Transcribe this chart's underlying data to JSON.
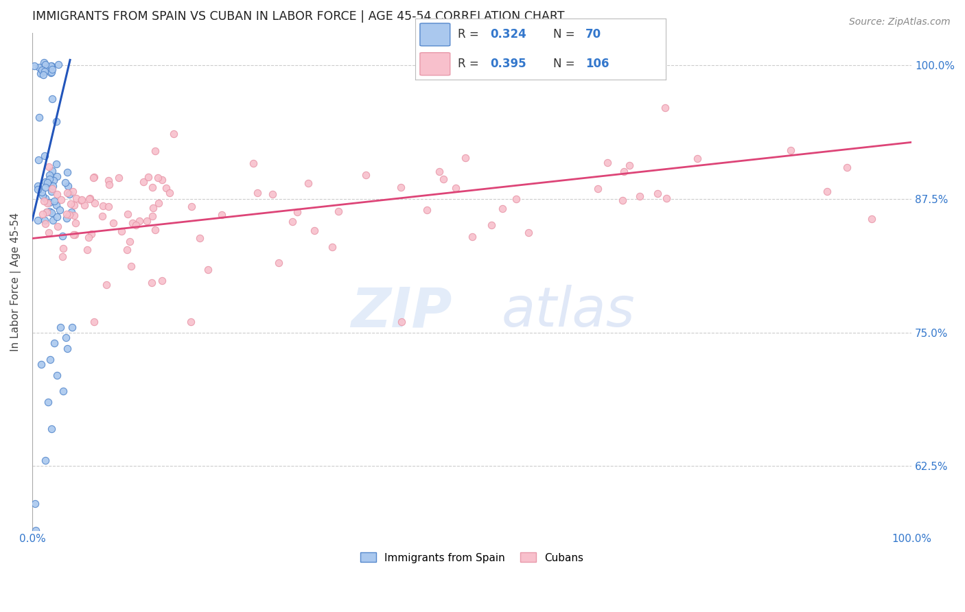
{
  "title": "IMMIGRANTS FROM SPAIN VS CUBAN IN LABOR FORCE | AGE 45-54 CORRELATION CHART",
  "source": "Source: ZipAtlas.com",
  "ylabel": "In Labor Force | Age 45-54",
  "xlim": [
    0.0,
    1.0
  ],
  "ylim": [
    0.565,
    1.03
  ],
  "y_tick_positions": [
    0.625,
    0.75,
    0.875,
    1.0
  ],
  "y_tick_labels": [
    "62.5%",
    "75.0%",
    "87.5%",
    "100.0%"
  ],
  "spain_color": "#aac8ee",
  "spain_edge_color": "#5588cc",
  "cuban_color": "#f8c0cc",
  "cuban_edge_color": "#e899aa",
  "spain_line_color": "#2255bb",
  "cuban_line_color": "#dd4477",
  "spain_R": 0.324,
  "spain_N": 70,
  "cuban_R": 0.395,
  "cuban_N": 106,
  "legend_label_spain": "Immigrants from Spain",
  "legend_label_cuban": "Cubans",
  "spain_trend_x": [
    0.0,
    0.043
  ],
  "spain_trend_y": [
    0.855,
    1.005
  ],
  "cuban_trend_x": [
    0.0,
    1.0
  ],
  "cuban_trend_y": [
    0.838,
    0.928
  ]
}
